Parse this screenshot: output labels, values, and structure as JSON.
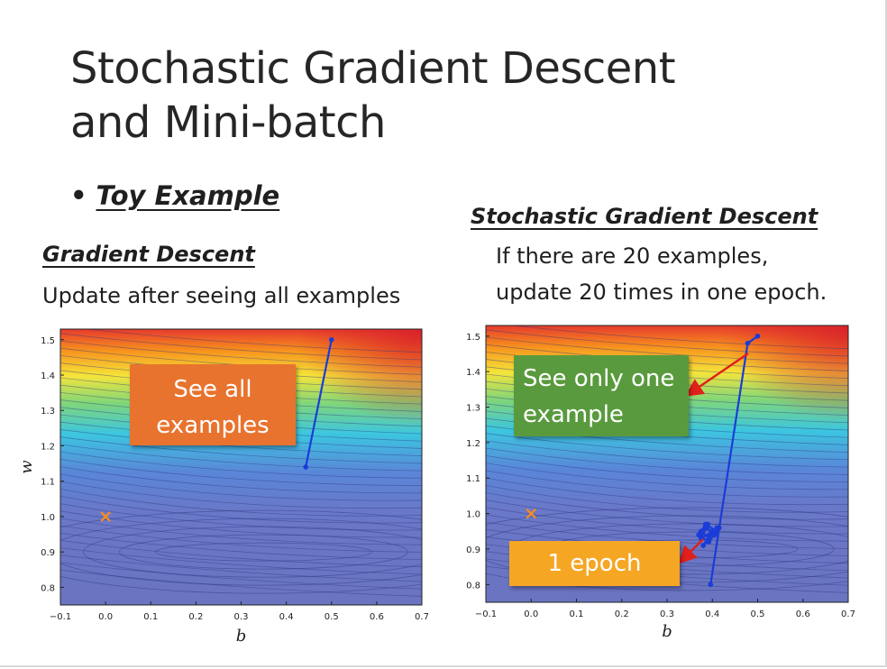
{
  "slide": {
    "title_line1": "Stochastic Gradient Descent",
    "title_line2": "and Mini-batch",
    "bullet": "Toy Example"
  },
  "left_panel": {
    "heading": "Gradient Descent",
    "description": "Update after seeing all examples",
    "callout_line1": "See all",
    "callout_line2": "examples",
    "callout_color": "#e8732e"
  },
  "right_panel": {
    "heading": "Stochastic Gradient Descent",
    "description_line1": "If there are 20 examples,",
    "description_line2": "update 20 times in one epoch.",
    "callout1_line1": "See only one",
    "callout1_line2": "example",
    "callout1_color": "#5a9a3e",
    "callout2": "1 epoch",
    "callout2_color": "#f5a623"
  },
  "chart_data": [
    {
      "type": "line",
      "xlabel": "b",
      "ylabel": "w",
      "xlim": [
        -0.1,
        0.7
      ],
      "ylim": [
        0.75,
        1.53
      ],
      "xticks": [
        "−0.1",
        "0.0",
        "0.1",
        "0.2",
        "0.3",
        "0.4",
        "0.5",
        "0.6",
        "0.7"
      ],
      "yticks": [
        "0.8",
        "0.9",
        "1.0",
        "1.1",
        "1.2",
        "1.3",
        "1.4",
        "1.5"
      ],
      "background": "contour",
      "optimum": {
        "b": 0.0,
        "w": 1.0,
        "marker": "x",
        "color": "#ff8c1a"
      },
      "series": [
        {
          "color": "#1a3cd8",
          "x": [
            0.5,
            0.443
          ],
          "y": [
            1.5,
            1.14
          ]
        }
      ]
    },
    {
      "type": "line",
      "xlabel": "b",
      "ylabel": "",
      "xlim": [
        -0.1,
        0.7
      ],
      "ylim": [
        0.75,
        1.53
      ],
      "xticks": [
        "−0.1",
        "0.0",
        "0.1",
        "0.2",
        "0.3",
        "0.4",
        "0.5",
        "0.6",
        "0.7"
      ],
      "yticks": [
        "0.8",
        "0.9",
        "1.0",
        "1.1",
        "1.2",
        "1.3",
        "1.4",
        "1.5"
      ],
      "background": "contour",
      "optimum": {
        "b": 0.0,
        "w": 1.0,
        "marker": "x",
        "color": "#ff8c1a"
      },
      "series": [
        {
          "color": "#1a3cd8",
          "x": [
            0.5,
            0.478,
            0.396,
            0.415,
            0.375,
            0.39,
            0.372,
            0.385,
            0.398,
            0.38,
            0.405,
            0.388,
            0.375,
            0.395,
            0.41,
            0.385,
            0.37,
            0.392,
            0.41,
            0.4
          ],
          "y": [
            1.5,
            1.48,
            0.8,
            0.96,
            0.93,
            0.97,
            0.94,
            0.96,
            0.95,
            0.91,
            0.94,
            0.96,
            0.95,
            0.93,
            0.95,
            0.97,
            0.94,
            0.92,
            0.96,
            0.94
          ]
        }
      ]
    }
  ]
}
